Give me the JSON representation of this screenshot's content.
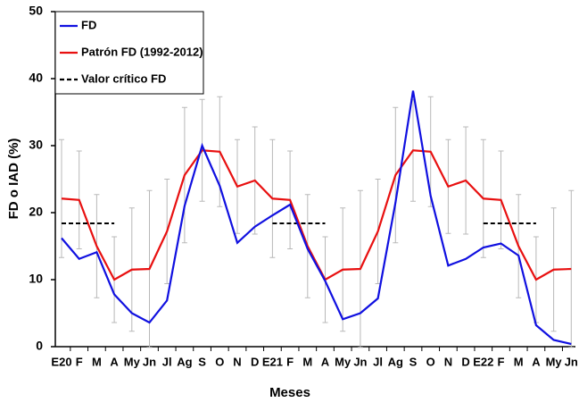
{
  "chart_data": {
    "type": "line",
    "xlabel": "Meses",
    "ylabel": "FD o IAD (%)",
    "categories": [
      "E20",
      "F",
      "M",
      "A",
      "My",
      "Jn",
      "Jl",
      "Ag",
      "S",
      "O",
      "N",
      "D",
      "E21",
      "F",
      "M",
      "A",
      "My",
      "Jn",
      "Jl",
      "Ag",
      "S",
      "O",
      "N",
      "D",
      "E22",
      "F",
      "M",
      "A",
      "My",
      "Jn"
    ],
    "ylim": [
      0,
      50
    ],
    "yticks": [
      0,
      10,
      20,
      30,
      40,
      50
    ],
    "legend": "top-left",
    "series": [
      {
        "name": "FD",
        "color": "#1010e0",
        "style": "solid",
        "values": [
          16.2,
          13.1,
          14.1,
          7.8,
          5.0,
          3.6,
          6.9,
          21.0,
          30.0,
          24.0,
          15.5,
          17.9,
          19.6,
          21.2,
          14.6,
          9.8,
          4.1,
          5.0,
          7.2,
          21.5,
          38.2,
          22.5,
          12.1,
          13.1,
          14.8,
          15.4,
          13.6,
          3.2,
          1.0,
          0.4
        ]
      },
      {
        "name": "Patrón FD (1992-2012)",
        "color": "#e81010",
        "style": "solid",
        "values": [
          22.1,
          21.9,
          15.0,
          10.0,
          11.5,
          11.6,
          17.2,
          25.6,
          29.3,
          29.1,
          23.9,
          24.8,
          22.1,
          21.9,
          15.0,
          10.0,
          11.5,
          11.6,
          17.2,
          25.6,
          29.3,
          29.1,
          23.9,
          24.8,
          22.1,
          21.9,
          15.0,
          10.0,
          11.5,
          11.6
        ],
        "errors": [
          8.8,
          7.3,
          7.7,
          6.4,
          9.2,
          11.7,
          7.8,
          10.1,
          7.6,
          8.2,
          7.0,
          8.0,
          8.8,
          7.3,
          7.7,
          6.4,
          9.2,
          11.7,
          7.8,
          10.1,
          7.6,
          8.2,
          7.0,
          8.0,
          8.8,
          7.3,
          7.7,
          6.4,
          9.2,
          11.7
        ]
      },
      {
        "name": "Valor crítico FD",
        "color": "#000000",
        "style": "dashed",
        "values": [
          18.4,
          18.4,
          18.4,
          18.4,
          null,
          null,
          null,
          null,
          null,
          null,
          null,
          null,
          18.4,
          18.4,
          18.4,
          18.4,
          null,
          null,
          null,
          null,
          null,
          null,
          null,
          null,
          18.4,
          18.4,
          18.4,
          18.4,
          null,
          null
        ]
      }
    ]
  }
}
